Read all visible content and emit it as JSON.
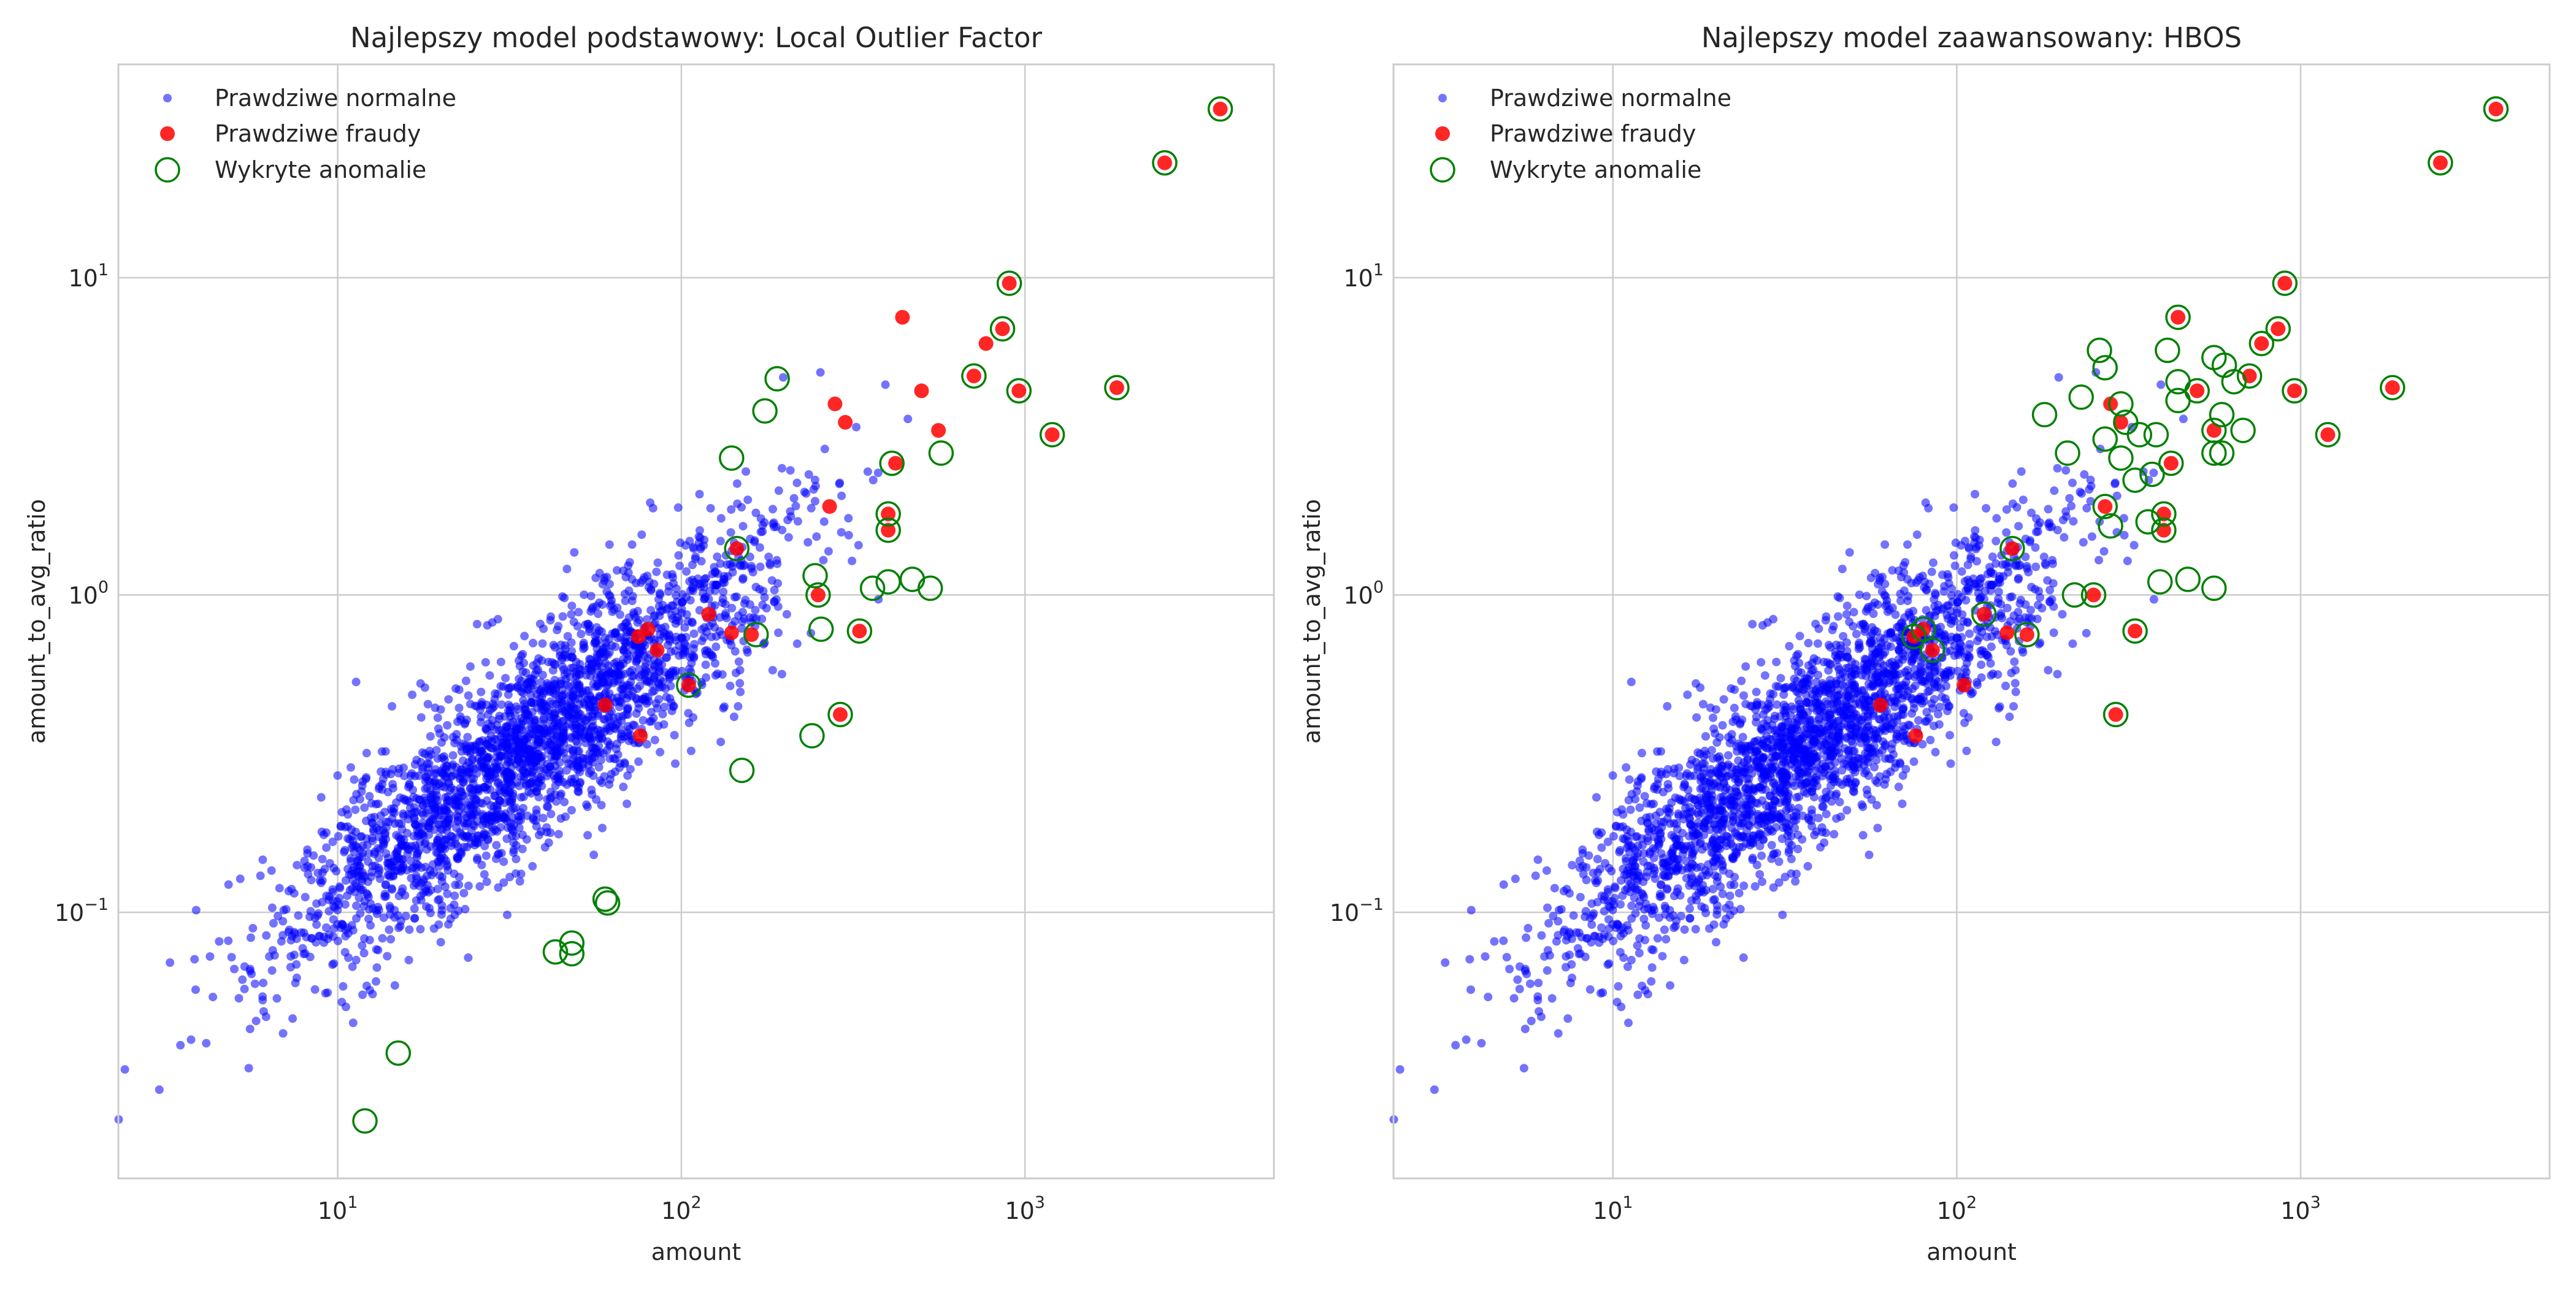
{
  "colors": {
    "normal": "#0000ff",
    "fraud": "#ff0000",
    "detected": "#008000",
    "grid": "#cccccc"
  },
  "chart_data": [
    {
      "type": "scatter",
      "title": "Najlepszy model podstawowy: Local Outlier Factor",
      "xlabel": "amount",
      "ylabel": "amount_to_avg_ratio",
      "xscale": "log",
      "yscale": "log",
      "xlim": [
        2.3,
        5300
      ],
      "ylim": [
        0.0145,
        47
      ],
      "grid": true,
      "legend_position": "upper-left",
      "legend": [
        "Prawdziwe normalne",
        "Prawdziwe fraudy",
        "Wykryte anomalie"
      ],
      "normal_sample": {
        "description": "dense cloud of about 3000 normal transactions, x roughly 3–1200, correlated with y",
        "seed": 11,
        "count": 2600,
        "x_log_mean": 1.55,
        "x_log_sd": 0.36,
        "slope": 0.82,
        "intercept": -1.75,
        "y_log_sd": 0.16
      },
      "frauds": [
        [
          3700,
          34.0
        ],
        [
          2550,
          23.0
        ],
        [
          900,
          9.6
        ],
        [
          440,
          7.5
        ],
        [
          860,
          6.9
        ],
        [
          770,
          6.2
        ],
        [
          710,
          4.9
        ],
        [
          960,
          4.4
        ],
        [
          1850,
          4.5
        ],
        [
          1200,
          3.2
        ],
        [
          280,
          4.0
        ],
        [
          300,
          3.5
        ],
        [
          500,
          4.4
        ],
        [
          560,
          3.3
        ],
        [
          420,
          2.6
        ],
        [
          270,
          1.9
        ],
        [
          400,
          1.8
        ],
        [
          400,
          1.6
        ],
        [
          145,
          1.4
        ],
        [
          250,
          1.0
        ],
        [
          120,
          0.87
        ],
        [
          80,
          0.78
        ],
        [
          75,
          0.74
        ],
        [
          140,
          0.76
        ],
        [
          160,
          0.75
        ],
        [
          85,
          0.67
        ],
        [
          330,
          0.77
        ],
        [
          105,
          0.52
        ],
        [
          60,
          0.45
        ],
        [
          290,
          0.42
        ],
        [
          76,
          0.36
        ]
      ],
      "detected": [
        [
          3700,
          34.0
        ],
        [
          2550,
          23.0
        ],
        [
          900,
          9.6
        ],
        [
          860,
          6.9
        ],
        [
          710,
          4.9
        ],
        [
          960,
          4.4
        ],
        [
          1850,
          4.5
        ],
        [
          1200,
          3.2
        ],
        [
          190,
          4.8
        ],
        [
          175,
          3.8
        ],
        [
          140,
          2.7
        ],
        [
          570,
          2.8
        ],
        [
          410,
          2.6
        ],
        [
          400,
          1.8
        ],
        [
          400,
          1.6
        ],
        [
          145,
          1.4
        ],
        [
          245,
          1.15
        ],
        [
          250,
          1.0
        ],
        [
          255,
          0.78
        ],
        [
          330,
          0.77
        ],
        [
          360,
          1.05
        ],
        [
          400,
          1.1
        ],
        [
          470,
          1.12
        ],
        [
          530,
          1.05
        ],
        [
          165,
          0.75
        ],
        [
          105,
          0.52
        ],
        [
          290,
          0.42
        ],
        [
          240,
          0.36
        ],
        [
          150,
          0.28
        ],
        [
          60,
          0.11
        ],
        [
          61,
          0.107
        ],
        [
          48,
          0.08
        ],
        [
          43,
          0.075
        ],
        [
          48,
          0.074
        ],
        [
          15,
          0.036
        ],
        [
          12,
          0.022
        ]
      ]
    },
    {
      "type": "scatter",
      "title": "Najlepszy model zaawansowany: HBOS",
      "xlabel": "amount",
      "ylabel": "amount_to_avg_ratio",
      "xscale": "log",
      "yscale": "log",
      "xlim": [
        2.3,
        5300
      ],
      "ylim": [
        0.0145,
        47
      ],
      "grid": true,
      "legend_position": "upper-left",
      "legend": [
        "Prawdziwe normalne",
        "Prawdziwe fraudy",
        "Wykryte anomalie"
      ],
      "normal_sample": {
        "description": "same normal transaction cloud as left panel",
        "seed": 11,
        "count": 2600,
        "x_log_mean": 1.55,
        "x_log_sd": 0.36,
        "slope": 0.82,
        "intercept": -1.75,
        "y_log_sd": 0.16
      },
      "frauds": [
        [
          3700,
          34.0
        ],
        [
          2550,
          23.0
        ],
        [
          900,
          9.6
        ],
        [
          440,
          7.5
        ],
        [
          860,
          6.9
        ],
        [
          770,
          6.2
        ],
        [
          710,
          4.9
        ],
        [
          960,
          4.4
        ],
        [
          1850,
          4.5
        ],
        [
          1200,
          3.2
        ],
        [
          280,
          4.0
        ],
        [
          300,
          3.5
        ],
        [
          500,
          4.4
        ],
        [
          560,
          3.3
        ],
        [
          420,
          2.6
        ],
        [
          270,
          1.9
        ],
        [
          400,
          1.8
        ],
        [
          400,
          1.6
        ],
        [
          145,
          1.4
        ],
        [
          250,
          1.0
        ],
        [
          120,
          0.87
        ],
        [
          80,
          0.78
        ],
        [
          75,
          0.74
        ],
        [
          140,
          0.76
        ],
        [
          160,
          0.75
        ],
        [
          85,
          0.67
        ],
        [
          330,
          0.77
        ],
        [
          105,
          0.52
        ],
        [
          60,
          0.45
        ],
        [
          290,
          0.42
        ],
        [
          76,
          0.36
        ]
      ],
      "detected": [
        [
          3700,
          34.0
        ],
        [
          2550,
          23.0
        ],
        [
          900,
          9.6
        ],
        [
          440,
          7.5
        ],
        [
          860,
          6.9
        ],
        [
          770,
          6.2
        ],
        [
          710,
          4.9
        ],
        [
          960,
          4.4
        ],
        [
          1850,
          4.5
        ],
        [
          1200,
          3.2
        ],
        [
          260,
          5.9
        ],
        [
          270,
          5.2
        ],
        [
          410,
          5.9
        ],
        [
          560,
          5.6
        ],
        [
          600,
          5.3
        ],
        [
          640,
          4.7
        ],
        [
          440,
          4.7
        ],
        [
          230,
          4.2
        ],
        [
          300,
          4.0
        ],
        [
          310,
          3.5
        ],
        [
          500,
          4.4
        ],
        [
          440,
          4.1
        ],
        [
          590,
          3.7
        ],
        [
          560,
          3.3
        ],
        [
          680,
          3.3
        ],
        [
          180,
          3.7
        ],
        [
          210,
          2.8
        ],
        [
          270,
          3.1
        ],
        [
          340,
          3.2
        ],
        [
          380,
          3.2
        ],
        [
          300,
          2.7
        ],
        [
          330,
          2.3
        ],
        [
          370,
          2.4
        ],
        [
          420,
          2.6
        ],
        [
          560,
          2.8
        ],
        [
          590,
          2.8
        ],
        [
          270,
          1.9
        ],
        [
          360,
          1.7
        ],
        [
          400,
          1.8
        ],
        [
          400,
          1.6
        ],
        [
          280,
          1.65
        ],
        [
          145,
          1.4
        ],
        [
          220,
          1.0
        ],
        [
          250,
          1.0
        ],
        [
          390,
          1.1
        ],
        [
          470,
          1.12
        ],
        [
          560,
          1.05
        ],
        [
          330,
          0.77
        ],
        [
          120,
          0.87
        ],
        [
          75,
          0.74
        ],
        [
          80,
          0.78
        ],
        [
          160,
          0.75
        ],
        [
          85,
          0.67
        ],
        [
          290,
          0.42
        ]
      ]
    }
  ]
}
